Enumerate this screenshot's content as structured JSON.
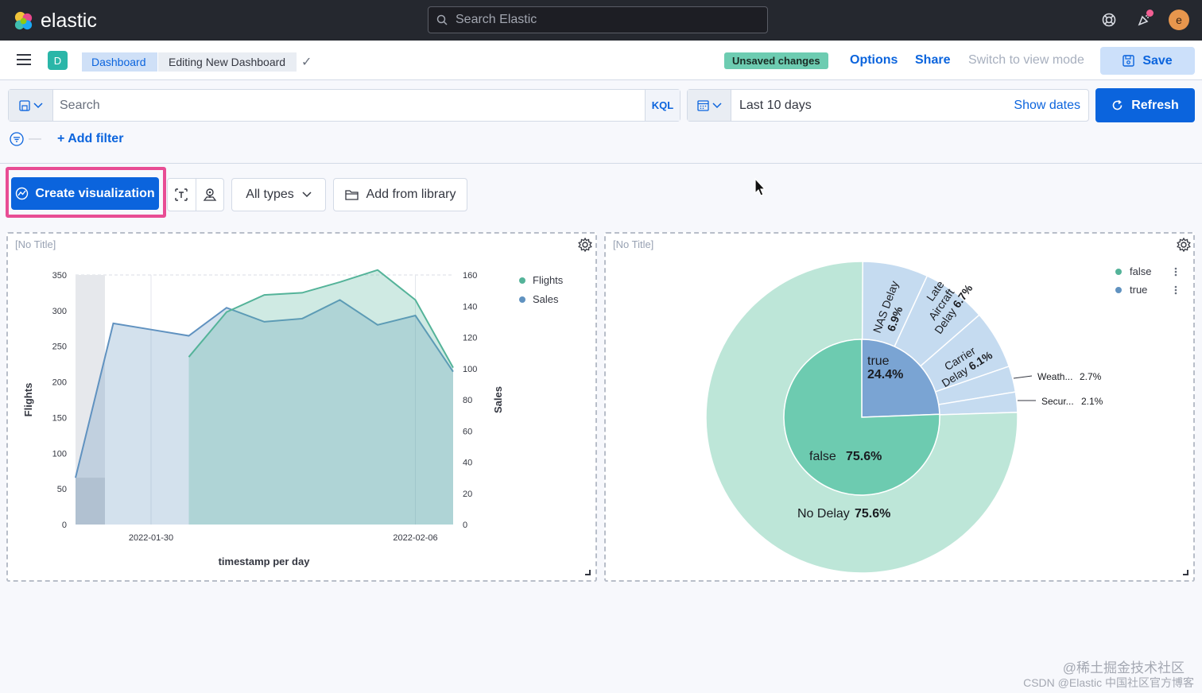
{
  "header": {
    "logo_text": "elastic",
    "search_placeholder": "Search Elastic",
    "avatar_initial": "e",
    "icons": [
      "help-icon",
      "newsfeed-icon",
      "user-avatar"
    ]
  },
  "nav": {
    "space_initial": "D",
    "breadcrumbs": [
      "Dashboard",
      "Editing New Dashboard"
    ],
    "unsaved_badge": "Unsaved changes",
    "options_label": "Options",
    "share_label": "Share",
    "view_mode_label": "Switch to view mode",
    "save_label": "Save"
  },
  "query": {
    "search_placeholder": "Search",
    "language": "KQL",
    "time_range": "Last 10 days",
    "show_dates_label": "Show dates",
    "refresh_label": "Refresh",
    "add_filter_label": "+ Add filter"
  },
  "toolbar": {
    "create_label": "Create visualization",
    "types_label": "All types",
    "library_label": "Add from library"
  },
  "panels": {
    "left_title": "[No Title]",
    "right_title": "[No Title]"
  },
  "colors": {
    "accent": "#0b64dd",
    "flights": "#54b399",
    "sales": "#6092c0",
    "highlight": "#e84d94"
  },
  "chart_data": [
    {
      "type": "area",
      "title": "",
      "xlabel": "timestamp per day",
      "ylabel": "Flights",
      "y2label": "Sales",
      "x_ticks": [
        "2022-01-30",
        "2022-02-06"
      ],
      "ylim": [
        0,
        350
      ],
      "y2lim": [
        0,
        160
      ],
      "y_ticks": [
        0,
        50,
        100,
        150,
        200,
        250,
        300,
        350
      ],
      "y2_ticks": [
        0,
        20,
        40,
        60,
        80,
        100,
        120,
        140,
        160
      ],
      "legend": [
        "Flights",
        "Sales"
      ],
      "x": [
        "2022-01-28",
        "2022-01-29",
        "2022-01-30",
        "2022-01-31",
        "2022-02-01",
        "2022-02-02",
        "2022-02-03",
        "2022-02-04",
        "2022-02-05",
        "2022-02-06",
        "2022-02-07"
      ],
      "series": [
        {
          "name": "Sales",
          "axis": "right",
          "values": [
            30,
            129,
            125,
            121,
            139,
            130,
            132,
            144,
            128,
            134,
            98
          ]
        },
        {
          "name": "Flights",
          "axis": "left",
          "values": [
            null,
            null,
            null,
            235,
            298,
            322,
            325,
            340,
            357,
            315,
            220
          ]
        }
      ]
    },
    {
      "type": "pie",
      "title": "",
      "legend": [
        "false",
        "true"
      ],
      "inner": [
        {
          "label": "true",
          "value": 24.4,
          "display": "24.4%"
        },
        {
          "label": "false",
          "value": 75.6,
          "display": "75.6%"
        }
      ],
      "outer": [
        {
          "label": "NAS Delay",
          "value": 6.9,
          "display": "6.9%"
        },
        {
          "label": "Late Aircraft Delay",
          "value": 6.7,
          "display": "6.7%"
        },
        {
          "label": "Carrier Delay",
          "value": 6.1,
          "display": "6.1%"
        },
        {
          "label": "Weath...",
          "value": 2.7,
          "display": "2.7%"
        },
        {
          "label": "Secur...",
          "value": 2.1,
          "display": "2.1%"
        },
        {
          "label": "No Delay",
          "value": 75.6,
          "display": "75.6%"
        }
      ]
    }
  ],
  "watermark": {
    "line1": "@稀土掘金技术社区",
    "line2": "CSDN @Elastic 中国社区官方博客"
  }
}
